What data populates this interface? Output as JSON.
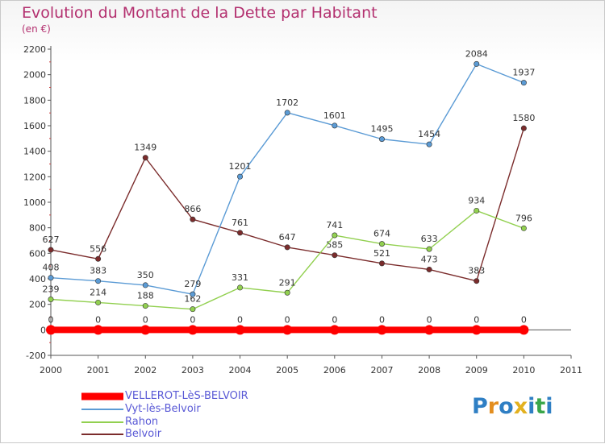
{
  "title": "Evolution du Montant de la Dette par Habitant",
  "subtitle": "(en €)",
  "logo": {
    "text": "Proxiti",
    "letters": [
      "P",
      "r",
      "o",
      "x",
      "i",
      "t",
      "i"
    ],
    "colors": [
      "#2f7fc4",
      "#e38e1f",
      "#2f7fc4",
      "#e3b11f",
      "#2f7fc4",
      "#3aa64a",
      "#2f7fc4"
    ]
  },
  "chart_data": {
    "type": "line",
    "title": "Evolution du Montant de la Dette par Habitant",
    "ylabel": "(en €)",
    "xlabel": "",
    "x": [
      2000,
      2001,
      2002,
      2003,
      2004,
      2005,
      2006,
      2007,
      2008,
      2009,
      2010
    ],
    "xlim": [
      2000,
      2011
    ],
    "xticks": [
      "2000",
      "2001",
      "2002",
      "2003",
      "2004",
      "2005",
      "2006",
      "2007",
      "2008",
      "2009",
      "2010",
      "2011"
    ],
    "ylim": [
      -200,
      2200
    ],
    "yticks": [
      "-200",
      "0",
      "200",
      "400",
      "600",
      "800",
      "1000",
      "1200",
      "1400",
      "1600",
      "1800",
      "2000",
      "2200"
    ],
    "legend_position": "bottom-left",
    "series": [
      {
        "name": "VELLEROT-LèS-BELVOIR",
        "color": "#ff0000",
        "values": [
          0,
          0,
          0,
          0,
          0,
          0,
          0,
          0,
          0,
          0,
          0
        ]
      },
      {
        "name": "Vyt-lès-Belvoir",
        "color": "#5b9bd5",
        "values": [
          408,
          383,
          350,
          279,
          1201,
          1702,
          1601,
          1495,
          1454,
          2084,
          1937
        ]
      },
      {
        "name": "Rahon",
        "color": "#92d050",
        "values": [
          239,
          214,
          188,
          162,
          331,
          291,
          741,
          674,
          633,
          934,
          796
        ]
      },
      {
        "name": "Belvoir",
        "color": "#7b2c2c",
        "values": [
          627,
          556,
          1349,
          866,
          761,
          647,
          585,
          521,
          473,
          383,
          1580
        ]
      }
    ]
  }
}
